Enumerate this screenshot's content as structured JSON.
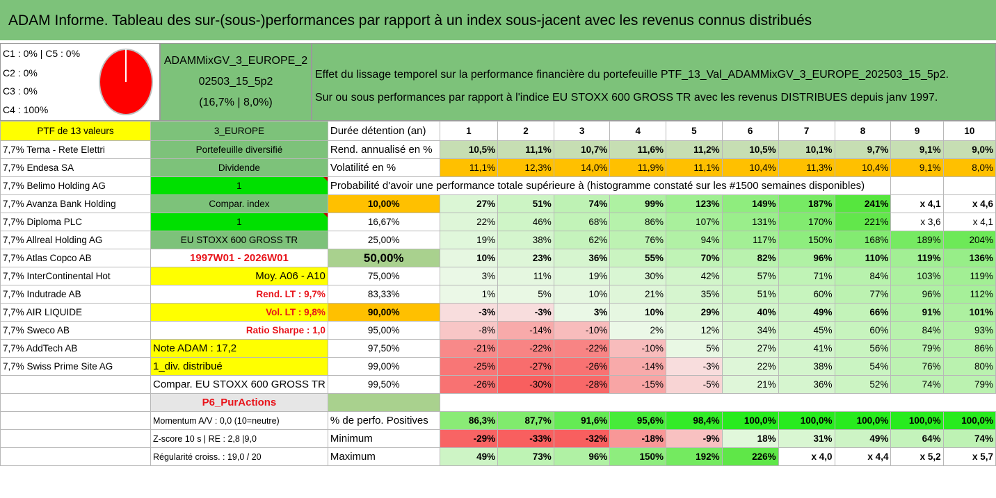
{
  "title": "ADAM Informe. Tableau des sur-(sous-)performances par rapport à un index sous-jacent avec les revenus connus distribués",
  "pie": {
    "lines": [
      "C1 : 0% | C5 : 0%",
      "C2 : 0%",
      "C3 : 0%",
      "C4 : 100%"
    ],
    "color": "#ff0000"
  },
  "portfolio": {
    "line1": "ADAMMixGV_3_EUROPE_2",
    "line2": "02503_15_5p2",
    "line3": "(16,7% | 8,0%)"
  },
  "effet": {
    "line1": "Effet du lissage temporel sur la performance financière du portefeuille PTF_13_Val_ADAMMixGV_3_EUROPE_202503_15_5p2.",
    "line2": "Sur ou sous performances par rapport à l'indice EU STOXX 600 GROSS TR avec les revenus DISTRIBUES depuis janv 1997."
  },
  "header": {
    "ptf": "PTF de 13 valeurs",
    "region": "3_EUROPE",
    "duree": "Durée détention (an)",
    "years": [
      "1",
      "2",
      "3",
      "4",
      "5",
      "6",
      "7",
      "8",
      "9",
      "10"
    ]
  },
  "rend": {
    "label": "Rend. annualisé en %",
    "values": [
      "10,5%",
      "11,1%",
      "10,7%",
      "11,6%",
      "11,2%",
      "10,5%",
      "10,1%",
      "9,7%",
      "9,1%",
      "9,0%"
    ]
  },
  "vol": {
    "label": "Volatilité en %",
    "values": [
      "11,1%",
      "12,3%",
      "14,0%",
      "11,9%",
      "11,1%",
      "10,4%",
      "11,3%",
      "10,4%",
      "9,1%",
      "8,0%"
    ]
  },
  "proba_title": "Probabilité d'avoir une performance totale supérieure à (histogramme constaté sur les #1500 semaines disponibles)",
  "holdings": [
    "7,7% Terna - Rete Elettri",
    "7,7% Endesa SA",
    "7,7% Belimo Holding AG",
    "7,7% Avanza Bank Holding",
    "7,7% Diploma PLC",
    "7,7% Allreal Holding AG",
    "7,7% Atlas Copco AB",
    "7,7% InterContinental Hot",
    "7,7% Indutrade AB",
    "7,7% AIR LIQUIDE",
    "7,7% Sweco AB",
    "7,7% AddTech AB",
    "7,7% Swiss Prime Site AG"
  ],
  "side": {
    "diversifie": "Portefeuille diversifié",
    "dividende": "Dividende",
    "one_a": "1",
    "compar_index": "Compar. index",
    "one_b": "1",
    "index_name": "EU STOXX 600 GROSS TR",
    "period": "1997W01 - 2026W01",
    "moy": "Moy. A06 - A10",
    "rend_lt": "Rend. LT : 9,7%",
    "vol_lt": "Vol. LT : 9,8%",
    "sharpe": "Ratio Sharpe : 1,0",
    "note": "Note ADAM : 17,2",
    "div": "1_div. distribué",
    "compar_eu": "Compar. EU STOXX 600 GROSS TR",
    "p6": "P6_PurActions",
    "momentum": "Momentum A/V : 0,0 (10=neutre)",
    "zscore": "Z-score 10 s | RE : 2,8 |9,0",
    "regularite": "Régularité croiss. : 19,0 / 20"
  },
  "proba_rows": [
    {
      "level": "10,00%",
      "values": [
        "27%",
        "51%",
        "74%",
        "99%",
        "123%",
        "149%",
        "187%",
        "241%",
        "x 4,1",
        "x 4,6"
      ]
    },
    {
      "level": "16,67%",
      "values": [
        "22%",
        "46%",
        "68%",
        "86%",
        "107%",
        "131%",
        "170%",
        "221%",
        "x 3,6",
        "x 4,1"
      ]
    },
    {
      "level": "25,00%",
      "values": [
        "19%",
        "38%",
        "62%",
        "76%",
        "94%",
        "117%",
        "150%",
        "168%",
        "189%",
        "204%"
      ]
    },
    {
      "level": "50,00%",
      "values": [
        "10%",
        "23%",
        "36%",
        "55%",
        "70%",
        "82%",
        "96%",
        "110%",
        "119%",
        "136%"
      ]
    },
    {
      "level": "75,00%",
      "values": [
        "3%",
        "11%",
        "19%",
        "30%",
        "42%",
        "57%",
        "71%",
        "84%",
        "103%",
        "119%"
      ]
    },
    {
      "level": "83,33%",
      "values": [
        "1%",
        "5%",
        "10%",
        "21%",
        "35%",
        "51%",
        "60%",
        "77%",
        "96%",
        "112%"
      ]
    },
    {
      "level": "90,00%",
      "values": [
        "-3%",
        "-3%",
        "3%",
        "10%",
        "29%",
        "40%",
        "49%",
        "66%",
        "91%",
        "101%"
      ]
    },
    {
      "level": "95,00%",
      "values": [
        "-8%",
        "-14%",
        "-10%",
        "2%",
        "12%",
        "34%",
        "45%",
        "60%",
        "84%",
        "93%"
      ]
    },
    {
      "level": "97,50%",
      "values": [
        "-21%",
        "-22%",
        "-22%",
        "-10%",
        "5%",
        "27%",
        "41%",
        "56%",
        "79%",
        "86%"
      ]
    },
    {
      "level": "99,00%",
      "values": [
        "-25%",
        "-27%",
        "-26%",
        "-14%",
        "-3%",
        "22%",
        "38%",
        "54%",
        "76%",
        "80%"
      ]
    },
    {
      "level": "99,50%",
      "values": [
        "-26%",
        "-30%",
        "-28%",
        "-15%",
        "-5%",
        "21%",
        "36%",
        "52%",
        "74%",
        "79%"
      ]
    }
  ],
  "pos": {
    "label": "% de perfo. Positives",
    "values": [
      "86,3%",
      "87,7%",
      "91,6%",
      "95,6%",
      "98,4%",
      "100,0%",
      "100,0%",
      "100,0%",
      "100,0%",
      "100,0%"
    ]
  },
  "min": {
    "label": "Minimum",
    "values": [
      "-29%",
      "-33%",
      "-32%",
      "-18%",
      "-9%",
      "18%",
      "31%",
      "49%",
      "64%",
      "74%"
    ]
  },
  "max": {
    "label": "Maximum",
    "values": [
      "49%",
      "73%",
      "96%",
      "150%",
      "192%",
      "226%",
      "x 4,0",
      "x 4,4",
      "x 5,2",
      "x 5,7"
    ]
  }
}
